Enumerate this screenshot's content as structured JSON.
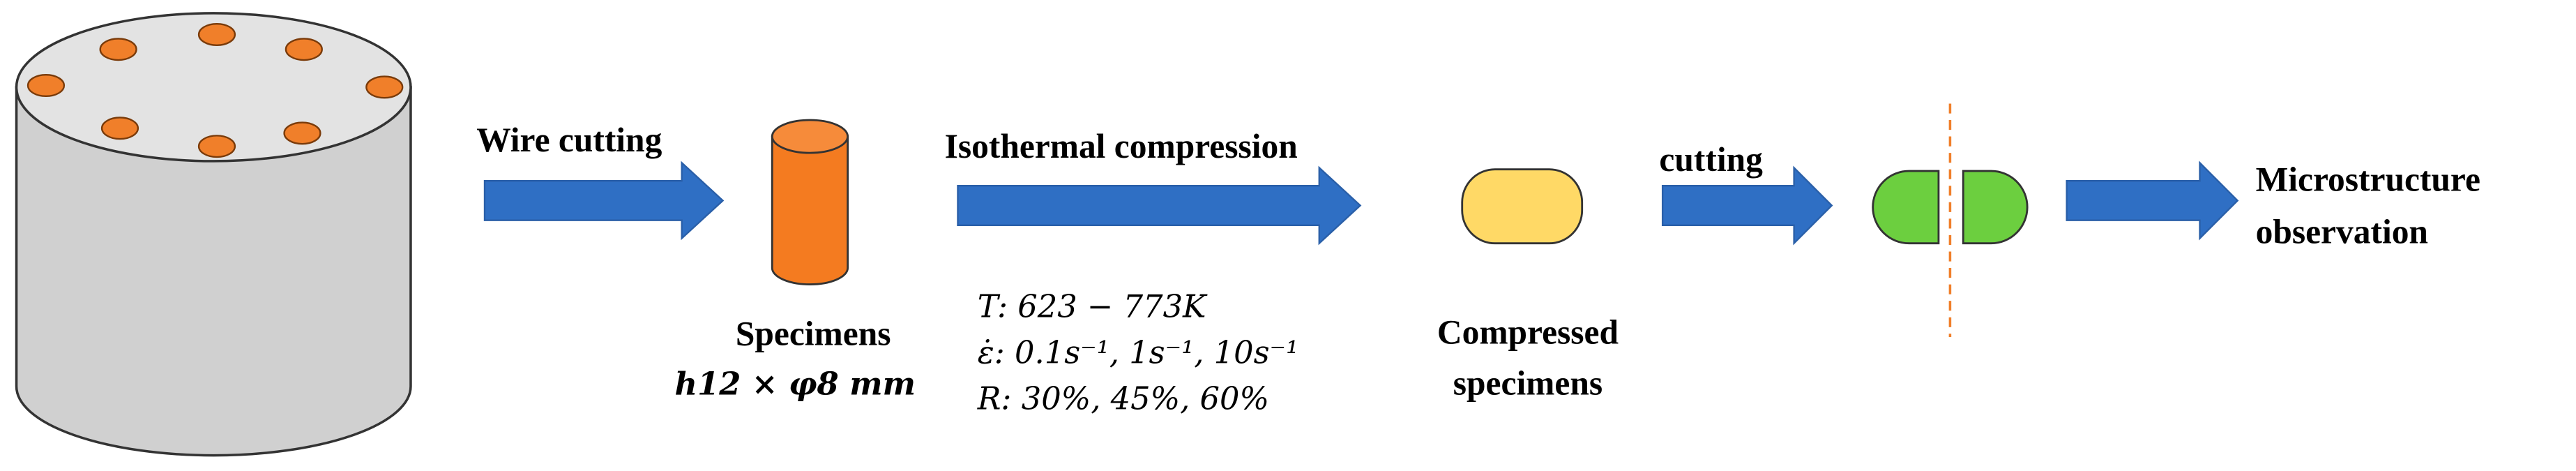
{
  "steps": [
    "Wire cutting",
    "Isothermal compression",
    "cutting"
  ],
  "specimen": {
    "name": "Specimens",
    "size": "h12 × φ8 mm"
  },
  "conditions": [
    "T: 623 − 773K",
    "ε̇: 0.1s⁻¹, 1s⁻¹, 10s⁻¹",
    "R: 30%, 45%, 60%"
  ],
  "compressed": [
    "Compressed",
    "specimens"
  ],
  "result": [
    "Microstructure",
    "observation"
  ]
}
